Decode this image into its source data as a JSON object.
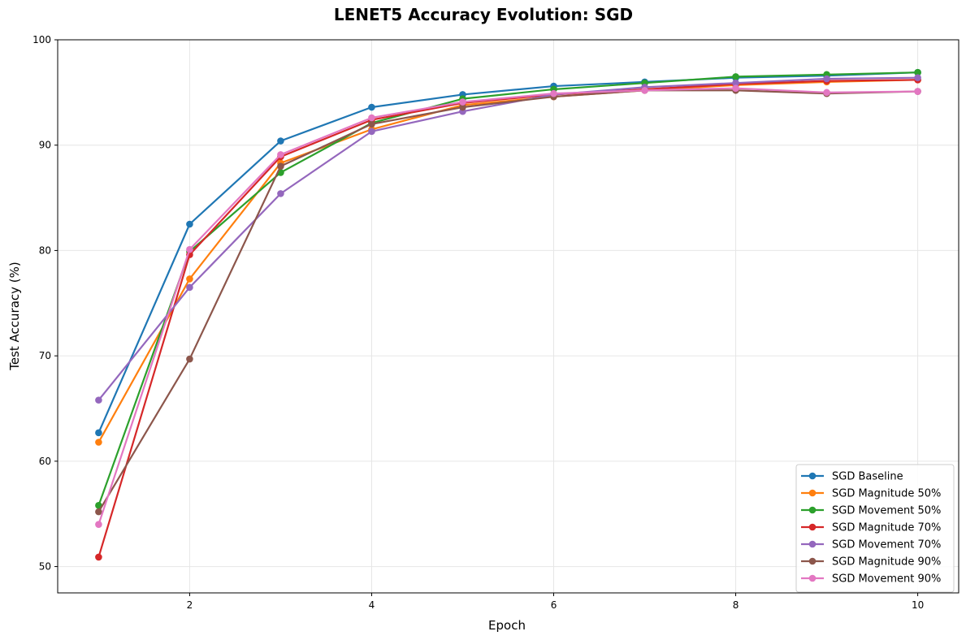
{
  "chart_data": {
    "type": "line",
    "title": "LENET5 Accuracy Evolution: SGD",
    "xlabel": "Epoch",
    "ylabel": "Test Accuracy (%)",
    "xlim": [
      0.55,
      10.45
    ],
    "ylim": [
      47.5,
      100
    ],
    "xticks": [
      2,
      4,
      6,
      8,
      10
    ],
    "yticks": [
      50,
      60,
      70,
      80,
      90,
      100
    ],
    "grid": true,
    "legend_position": "lower right",
    "x": [
      1,
      2,
      3,
      4,
      5,
      6,
      7,
      8,
      9,
      10
    ],
    "series": [
      {
        "name": "SGD Baseline",
        "color": "#1f77b4",
        "values": [
          62.7,
          82.5,
          90.4,
          93.6,
          94.8,
          95.6,
          96.0,
          96.4,
          96.6,
          96.9
        ]
      },
      {
        "name": "SGD Magnitude 50%",
        "color": "#ff7f0e",
        "values": [
          61.8,
          77.3,
          88.3,
          91.5,
          93.8,
          94.6,
          95.2,
          95.7,
          96.0,
          96.2
        ]
      },
      {
        "name": "SGD Movement 50%",
        "color": "#2ca02c",
        "values": [
          55.8,
          79.9,
          87.4,
          92.1,
          94.4,
          95.3,
          95.9,
          96.5,
          96.7,
          96.9
        ]
      },
      {
        "name": "SGD Magnitude 70%",
        "color": "#d62728",
        "values": [
          50.9,
          79.6,
          88.9,
          92.4,
          94.0,
          94.8,
          95.3,
          95.8,
          96.1,
          96.2
        ]
      },
      {
        "name": "SGD Movement 70%",
        "color": "#9467bd",
        "values": [
          65.8,
          76.5,
          85.4,
          91.3,
          93.2,
          94.8,
          95.5,
          95.9,
          96.3,
          96.4
        ]
      },
      {
        "name": "SGD Magnitude 90%",
        "color": "#8c564b",
        "values": [
          55.2,
          69.7,
          88.0,
          92.0,
          93.6,
          94.6,
          95.2,
          95.2,
          94.9,
          95.1
        ]
      },
      {
        "name": "SGD Movement 90%",
        "color": "#e377c2",
        "values": [
          54.0,
          80.1,
          89.1,
          92.6,
          94.1,
          94.9,
          95.2,
          95.4,
          95.0,
          95.1
        ]
      }
    ]
  }
}
